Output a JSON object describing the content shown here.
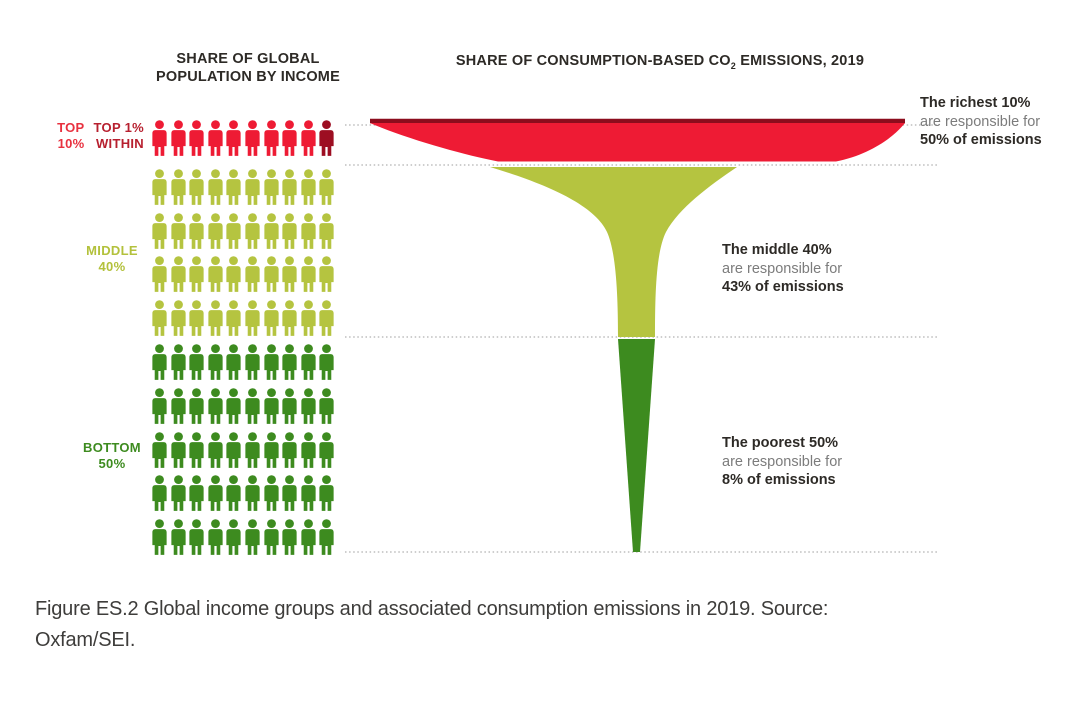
{
  "titles": {
    "population": {
      "line1": "SHARE OF GLOBAL",
      "line2": "POPULATION BY INCOME"
    },
    "emissions": {
      "pre": "SHARE OF CONSUMPTION-BASED CO",
      "sub": "2",
      "post": " EMISSIONS, 2019"
    }
  },
  "group_labels": {
    "top": {
      "primary_line1": "TOP",
      "primary_line2": "10%",
      "secondary_line1": "TOP 1%",
      "secondary_line2": "WITHIN"
    },
    "middle": {
      "line1": "MIDDLE",
      "line2": "40%"
    },
    "bottom": {
      "line1": "BOTTOM",
      "line2": "50%"
    }
  },
  "annotations": {
    "richest": {
      "line1": "The richest 10%",
      "line2": "are responsible for",
      "line3": "50% of emissions"
    },
    "middle": {
      "line1": "The middle 40%",
      "line2": "are responsible for",
      "line3": "43% of emissions"
    },
    "poorest": {
      "line1": "The poorest 50%",
      "line2": "are responsible for",
      "line3": "8% of emissions"
    }
  },
  "caption": {
    "line1": "Figure ES.2 Global income groups and associated consumption emissions in 2019. Source:",
    "line2": "Oxfam/SEI."
  },
  "chart_data": {
    "type": "pictograph-funnel",
    "title": "Global income groups and associated consumption emissions in 2019",
    "categories": [
      "Top 10%",
      "Middle 40%",
      "Bottom 50%"
    ],
    "series": [
      {
        "name": "Share of global population by income (%)",
        "values": [
          10,
          40,
          50
        ]
      },
      {
        "name": "Share of consumption-based CO2 emissions, 2019 (%)",
        "values": [
          50,
          43,
          8
        ]
      }
    ],
    "pictogram": {
      "total_icons": 100,
      "note": "1 person icon = 1% of global population; single darkest icon in first row = top 1% within the top 10%",
      "rows": [
        {
          "count": 10,
          "color": "#ee1b34",
          "last_icon_color": "#9d0e22",
          "group": "Top 10%"
        },
        {
          "count": 10,
          "color": "#b5c440",
          "group": "Middle 40%"
        },
        {
          "count": 10,
          "color": "#b5c440",
          "group": "Middle 40%"
        },
        {
          "count": 10,
          "color": "#b5c440",
          "group": "Middle 40%"
        },
        {
          "count": 10,
          "color": "#b5c440",
          "group": "Middle 40%"
        },
        {
          "count": 10,
          "color": "#3d8b1f",
          "group": "Bottom 50%"
        },
        {
          "count": 10,
          "color": "#3d8b1f",
          "group": "Bottom 50%"
        },
        {
          "count": 10,
          "color": "#3d8b1f",
          "group": "Bottom 50%"
        },
        {
          "count": 10,
          "color": "#3d8b1f",
          "group": "Bottom 50%"
        },
        {
          "count": 10,
          "color": "#3d8b1f",
          "group": "Bottom 50%"
        }
      ]
    },
    "colors": {
      "red": "#ee1b34",
      "dark_red": "#8c0d1d",
      "light_green": "#b5c440",
      "dark_green": "#3d8b1f",
      "dotted_line": "#bdbdbd"
    },
    "legend_position": "none",
    "grid": "dotted horizontal separators at group boundaries"
  }
}
